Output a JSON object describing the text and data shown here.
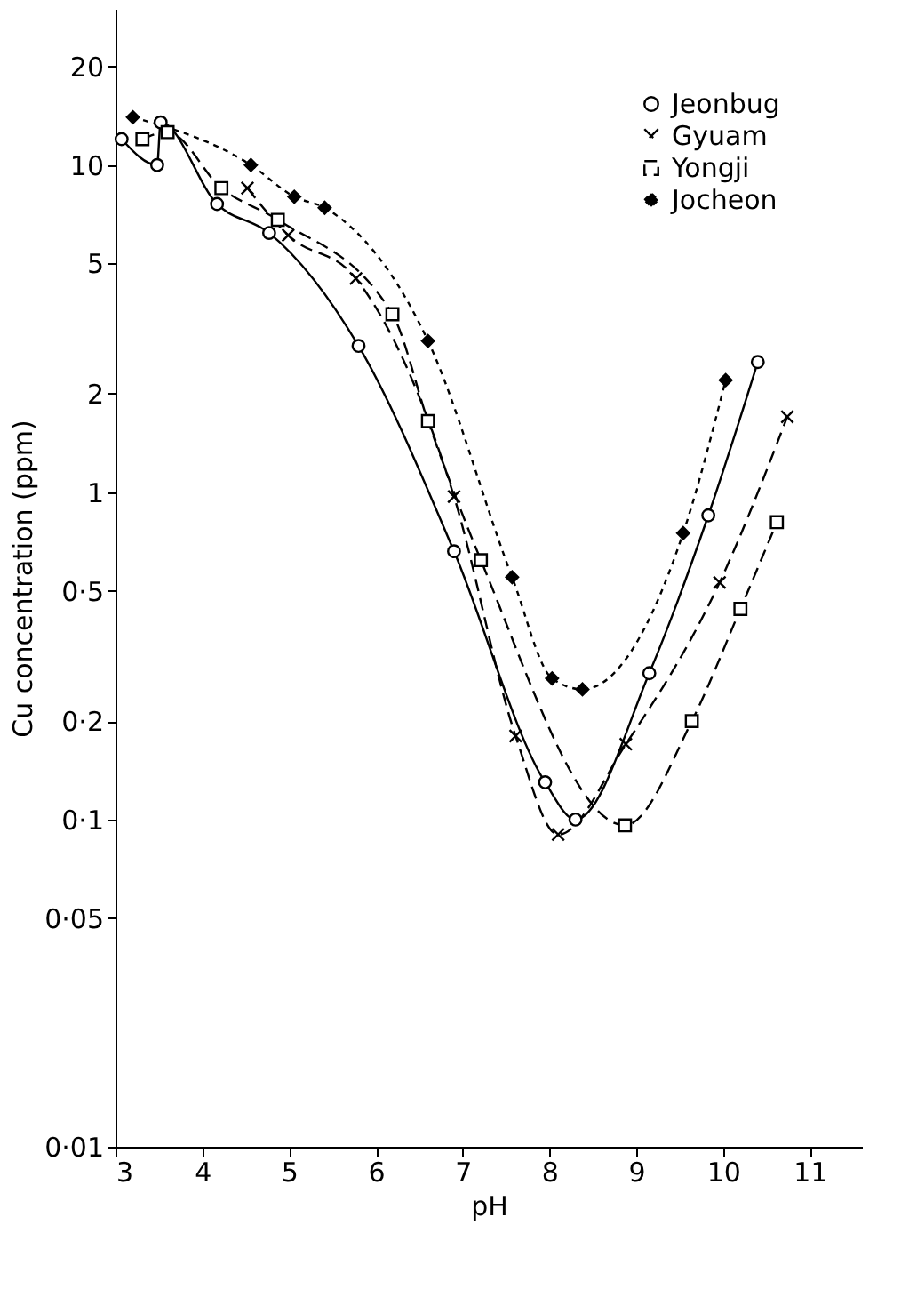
{
  "chart_data": {
    "type": "line",
    "xlabel": "pH",
    "ylabel": "Cu  concentration (ppm)",
    "xlim": [
      3,
      11.6
    ],
    "xticks": [
      3,
      4,
      5,
      6,
      7,
      8,
      9,
      10,
      11
    ],
    "ylim": [
      0.01,
      30
    ],
    "log": "y",
    "yticks": [
      {
        "value": 0.01,
        "label": "0·01"
      },
      {
        "value": 0.05,
        "label": "0·05"
      },
      {
        "value": 0.1,
        "label": "0·1"
      },
      {
        "value": 0.2,
        "label": "0·2"
      },
      {
        "value": 0.5,
        "label": "0·5"
      },
      1,
      2,
      5,
      10,
      20
    ],
    "grid": false,
    "legend": "top right",
    "series": [
      {
        "name": "Jeonbug",
        "color": "#000000",
        "marker": "circle",
        "line_style": "solid",
        "x": [
          3.07,
          3.48,
          3.52,
          4.17,
          4.77,
          5.8,
          6.9,
          7.95,
          8.3,
          9.15,
          9.83,
          10.4
        ],
        "values": [
          12,
          10,
          13.5,
          7.6,
          6.2,
          2.8,
          0.66,
          0.13,
          0.1,
          0.28,
          0.85,
          2.5
        ]
      },
      {
        "name": "Gyuam",
        "color": "#000000",
        "marker": "cross",
        "line_style": "dashed",
        "x": [
          4.52,
          4.99,
          5.77,
          6.9,
          7.61,
          8.1,
          8.88,
          9.96,
          10.74
        ],
        "values": [
          8.5,
          6.1,
          4.5,
          0.97,
          0.18,
          0.09,
          0.17,
          0.53,
          1.7
        ]
      },
      {
        "name": "Yongji",
        "color": "#000000",
        "marker": "square",
        "line_style": "dashed",
        "x": [
          3.31,
          3.6,
          4.22,
          4.87,
          6.19,
          6.6,
          7.21,
          8.87,
          9.64,
          10.2,
          10.62
        ],
        "values": [
          12,
          12.6,
          8.5,
          6.8,
          3.5,
          1.65,
          0.62,
          0.096,
          0.2,
          0.44,
          0.81
        ]
      },
      {
        "name": "Jocheon",
        "color": "#000000",
        "marker": "diamond",
        "line_style": "dotted",
        "x": [
          3.2,
          4.56,
          5.06,
          5.41,
          6.6,
          7.57,
          8.03,
          8.38,
          9.54,
          10.03
        ],
        "values": [
          14,
          10,
          8,
          7.4,
          2.9,
          0.55,
          0.27,
          0.25,
          0.75,
          2.2
        ]
      }
    ]
  }
}
